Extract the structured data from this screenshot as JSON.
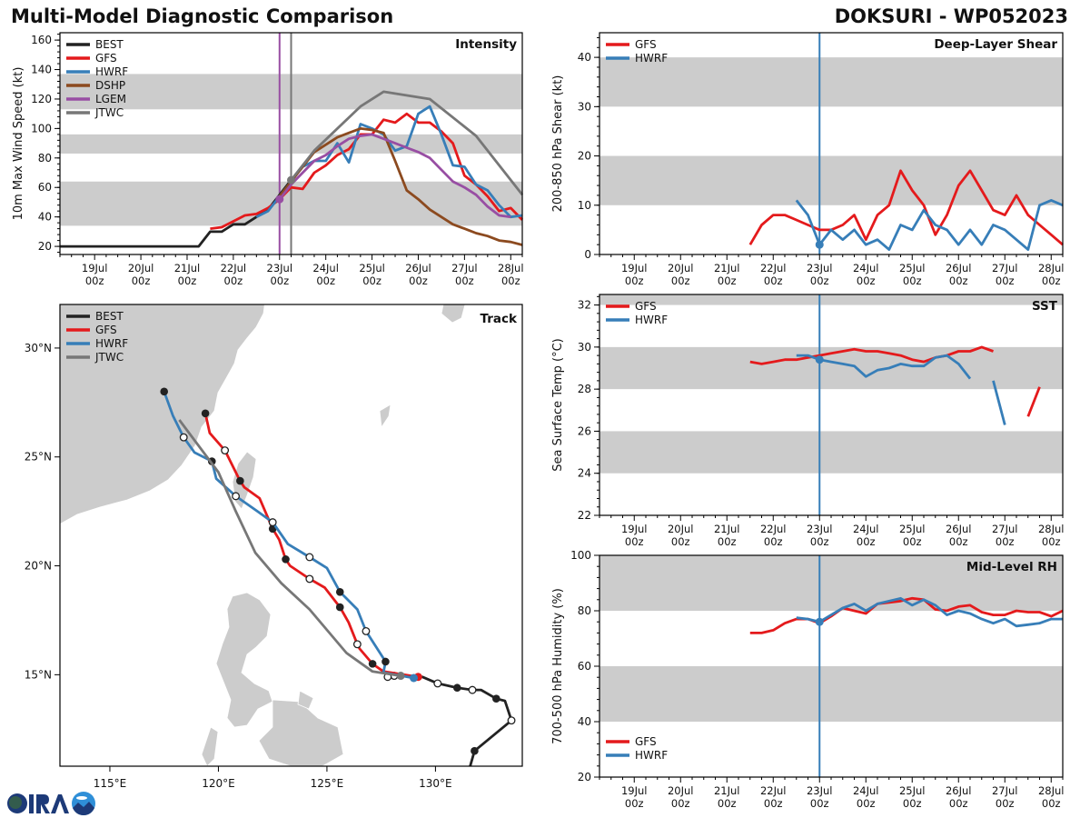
{
  "header": {
    "title": "Multi-Model Diagnostic Comparison",
    "storm": "DOKSURI - WP052023"
  },
  "logo": {
    "text": "CIRA",
    "colors": {
      "navy": "#1d3a78",
      "sky": "#2f8fd8"
    }
  },
  "colors": {
    "BEST": "#222222",
    "GFS": "#e41a1c",
    "HWRF": "#377eb8",
    "DSHP": "#8c4a1f",
    "LGEM": "#984ea3",
    "JTWC": "#777777",
    "band": "#cccccc"
  },
  "time_axis": {
    "xlim": [
      "18Jul 06z",
      "28Jul 06z"
    ],
    "ticks": [
      {
        "t": "19Jul 00z",
        "l1": "19Jul",
        "l2": "00z"
      },
      {
        "t": "20Jul 00z",
        "l1": "20Jul",
        "l2": "00z"
      },
      {
        "t": "21Jul 00z",
        "l1": "21Jul",
        "l2": "00z"
      },
      {
        "t": "22Jul 00z",
        "l1": "22Jul",
        "l2": "00z"
      },
      {
        "t": "23Jul 00z",
        "l1": "23Jul",
        "l2": "00z"
      },
      {
        "t": "24Jul 00z",
        "l1": "24Jul",
        "l2": "00z"
      },
      {
        "t": "25Jul 00z",
        "l1": "25Jul",
        "l2": "00z"
      },
      {
        "t": "26Jul 00z",
        "l1": "26Jul",
        "l2": "00z"
      },
      {
        "t": "27Jul 00z",
        "l1": "27Jul",
        "l2": "00z"
      },
      {
        "t": "28Jul 00z",
        "l1": "28Jul",
        "l2": "00z"
      }
    ]
  },
  "chart_data": [
    {
      "id": "intensity",
      "type": "line",
      "title": "Intensity",
      "ylabel": "10m Max Wind Speed (kt)",
      "ylim": [
        14.5,
        165
      ],
      "yticks": [
        20,
        40,
        60,
        80,
        100,
        120,
        140,
        160
      ],
      "show_xlabels": true,
      "bands": [
        [
          34,
          64
        ],
        [
          83,
          96
        ],
        [
          113,
          137
        ]
      ],
      "legend": "top-left",
      "grid": false,
      "vlines": [
        {
          "t": "23Jul 00z",
          "color": "#984ea3"
        },
        {
          "t": "23Jul 06z",
          "color": "#777777"
        }
      ],
      "series": [
        {
          "name": "BEST",
          "start": "18Jul 06z",
          "step_h": 6,
          "values": [
            20,
            20,
            20,
            20,
            20,
            20,
            20,
            20,
            20,
            20,
            20,
            20,
            20,
            30,
            30,
            35,
            35,
            40,
            45,
            55,
            65
          ]
        },
        {
          "name": "GFS",
          "start": "21Jul 12z",
          "step_h": 6,
          "values": [
            32,
            33,
            37,
            41,
            42,
            46,
            52,
            60,
            59,
            70,
            75,
            82,
            86,
            96,
            96,
            106,
            104,
            110,
            104,
            104,
            98,
            90,
            68,
            62,
            54,
            44,
            46,
            38
          ]
        },
        {
          "name": "HWRF",
          "start": "22Jul 12z",
          "step_h": 6,
          "values": [
            40,
            44,
            54,
            64,
            74,
            78,
            78,
            90,
            77,
            103,
            100,
            96,
            85,
            88,
            110,
            115,
            96,
            75,
            74,
            62,
            58,
            48,
            40,
            41
          ]
        },
        {
          "name": "DSHP",
          "start": "23Jul 00z",
          "step_h": 6,
          "values": [
            54,
            64,
            74,
            84,
            89,
            94,
            97,
            100,
            99,
            97,
            78,
            58,
            52,
            45,
            40,
            35,
            32,
            29,
            27,
            24,
            23,
            21
          ]
        },
        {
          "name": "LGEM",
          "start": "23Jul 00z",
          "step_h": 6,
          "values": [
            52,
            62,
            70,
            78,
            82,
            88,
            93,
            95,
            96,
            93,
            90,
            87,
            84,
            80,
            72,
            64,
            60,
            55,
            47,
            41,
            40
          ]
        },
        {
          "name": "JTWC",
          "times": [
            "23Jul 06z",
            "23Jul 18z",
            "24Jul 18z",
            "25Jul 06z",
            "26Jul 06z",
            "27Jul 06z",
            "28Jul 06z"
          ],
          "values": [
            65,
            85,
            115,
            125,
            120,
            95,
            55
          ]
        }
      ]
    },
    {
      "id": "shear",
      "type": "line",
      "title": "Deep-Layer Shear",
      "ylabel": "200-850 hPa Shear (kt)",
      "ylim": [
        0,
        45
      ],
      "yticks": [
        0,
        10,
        20,
        30,
        40
      ],
      "show_xlabels": true,
      "bands": [
        [
          10,
          20
        ],
        [
          30,
          40
        ]
      ],
      "legend": "top-left",
      "grid": false,
      "vlines": [
        {
          "t": "23Jul 00z",
          "color": "#377eb8"
        }
      ],
      "series": [
        {
          "name": "GFS",
          "start": "21Jul 12z",
          "step_h": 6,
          "values": [
            2,
            6,
            8,
            8,
            7,
            6,
            5,
            5,
            6,
            8,
            3,
            8,
            10,
            17,
            13,
            10,
            4,
            8,
            14,
            17,
            13,
            9,
            8,
            12,
            8,
            6,
            4,
            2
          ]
        },
        {
          "name": "HWRF",
          "start": "22Jul 12z",
          "step_h": 6,
          "values": [
            11,
            8,
            2,
            5,
            3,
            5,
            2,
            3,
            1,
            6,
            5,
            9,
            6,
            5,
            2,
            5,
            2,
            6,
            5,
            3,
            1,
            10,
            11,
            10
          ]
        }
      ]
    },
    {
      "id": "sst",
      "type": "line",
      "title": "SST",
      "ylabel": "Sea Surface Temp (°C)",
      "ylim": [
        22,
        32.5
      ],
      "yticks": [
        22,
        24,
        26,
        28,
        30,
        32
      ],
      "show_xlabels": true,
      "bands": [
        [
          24,
          26
        ],
        [
          28,
          30
        ],
        [
          32,
          32.5
        ]
      ],
      "legend": "top-left",
      "grid": false,
      "vlines": [
        {
          "t": "23Jul 00z",
          "color": "#377eb8"
        }
      ],
      "series": [
        {
          "name": "GFS",
          "start": "21Jul 12z",
          "step_h": 6,
          "values": [
            29.3,
            29.2,
            29.3,
            29.4,
            29.4,
            29.5,
            29.6,
            29.7,
            29.8,
            29.9,
            29.8,
            29.8,
            29.7,
            29.6,
            29.4,
            29.3,
            29.5,
            29.6,
            29.8,
            29.8,
            30.0,
            29.8,
            null,
            null,
            26.7,
            28.1
          ]
        },
        {
          "name": "HWRF",
          "start": "22Jul 12z",
          "step_h": 6,
          "values": [
            29.6,
            29.6,
            29.4,
            29.3,
            29.2,
            29.1,
            28.6,
            28.9,
            29.0,
            29.2,
            29.1,
            29.1,
            29.5,
            29.6,
            29.2,
            28.5,
            null,
            28.4,
            26.3
          ]
        }
      ]
    },
    {
      "id": "rh",
      "type": "line",
      "title": "Mid-Level RH",
      "ylabel": "700-500 hPa Humidity (%)",
      "ylim": [
        20,
        100
      ],
      "yticks": [
        20,
        40,
        60,
        80,
        100
      ],
      "show_xlabels": true,
      "bands": [
        [
          40,
          60
        ],
        [
          80,
          100
        ]
      ],
      "legend": "bottom-left",
      "grid": false,
      "vlines": [
        {
          "t": "23Jul 00z",
          "color": "#377eb8"
        }
      ],
      "series": [
        {
          "name": "GFS",
          "start": "21Jul 12z",
          "step_h": 6,
          "values": [
            72,
            72,
            73,
            75.5,
            77,
            77,
            75.5,
            78,
            81,
            80,
            79,
            82.5,
            83,
            83.5,
            84.5,
            84,
            80.5,
            80,
            81.5,
            82,
            79.5,
            78.5,
            78.5,
            80,
            79.5,
            79.5,
            78,
            80
          ]
        },
        {
          "name": "HWRF",
          "start": "22Jul 12z",
          "step_h": 6,
          "values": [
            77.5,
            77,
            76,
            78.5,
            81,
            82.5,
            80,
            82.5,
            83.5,
            84.5,
            82,
            84,
            82,
            78.5,
            80,
            79,
            77,
            75.5,
            77,
            74.5,
            75,
            75.5,
            77,
            77
          ]
        }
      ]
    },
    {
      "id": "track",
      "type": "map",
      "title": "Track",
      "legend": "top-left",
      "xlim": [
        112.7,
        134.0
      ],
      "ylim": [
        10.8,
        32.0
      ],
      "xticks": [
        {
          "v": 115,
          "label": "115°E"
        },
        {
          "v": 120,
          "label": "120°E"
        },
        {
          "v": 125,
          "label": "125°E"
        },
        {
          "v": 130,
          "label": "130°E"
        }
      ],
      "yticks": [
        {
          "v": 15,
          "label": "15°N"
        },
        {
          "v": 20,
          "label": "20°N"
        },
        {
          "v": 25,
          "label": "25°N"
        },
        {
          "v": 30,
          "label": "30°N"
        }
      ],
      "series": [
        {
          "name": "BEST",
          "points": [
            [
              131.6,
              10.8,
              null
            ],
            [
              131.8,
              11.5,
              "filled"
            ],
            [
              133.5,
              12.9,
              "open"
            ],
            [
              133.2,
              13.8,
              null
            ],
            [
              132.8,
              13.9,
              "filled"
            ],
            [
              132.1,
              14.3,
              null
            ],
            [
              131.7,
              14.3,
              "open"
            ],
            [
              131.0,
              14.4,
              "filled"
            ],
            [
              130.1,
              14.6,
              "open"
            ],
            [
              129.4,
              14.9,
              null
            ],
            [
              128.1,
              14.95,
              "open"
            ],
            [
              127.8,
              14.9,
              "open"
            ]
          ]
        },
        {
          "name": "GFS",
          "points": [
            [
              129.2,
              14.9,
              "start"
            ],
            [
              127.6,
              15.15,
              null
            ],
            [
              127.1,
              15.5,
              "filled"
            ],
            [
              126.5,
              16.2,
              null
            ],
            [
              126.4,
              16.4,
              "open"
            ],
            [
              126.0,
              17.4,
              null
            ],
            [
              125.6,
              18.1,
              "filled"
            ],
            [
              124.9,
              19.0,
              null
            ],
            [
              124.2,
              19.4,
              "open"
            ],
            [
              123.3,
              20.0,
              null
            ],
            [
              123.1,
              20.3,
              "filled"
            ],
            [
              122.8,
              21.2,
              null
            ],
            [
              122.5,
              21.7,
              "filled"
            ],
            [
              121.9,
              23.1,
              null
            ],
            [
              121.2,
              23.6,
              null
            ],
            [
              121.0,
              23.9,
              "filled"
            ],
            [
              120.3,
              25.3,
              "open"
            ],
            [
              119.6,
              26.1,
              null
            ],
            [
              119.4,
              27.0,
              "filled"
            ]
          ]
        },
        {
          "name": "HWRF",
          "points": [
            [
              129.0,
              14.85,
              "start"
            ],
            [
              127.6,
              15.1,
              null
            ],
            [
              127.7,
              15.6,
              "filled"
            ],
            [
              126.8,
              17.0,
              "open"
            ],
            [
              126.4,
              18.0,
              null
            ],
            [
              125.6,
              18.8,
              "filled"
            ],
            [
              125.0,
              19.9,
              null
            ],
            [
              124.2,
              20.4,
              "open"
            ],
            [
              123.2,
              21.0,
              null
            ],
            [
              122.5,
              22.0,
              "open"
            ],
            [
              121.8,
              22.5,
              null
            ],
            [
              120.8,
              23.2,
              "open"
            ],
            [
              119.9,
              24.0,
              null
            ],
            [
              119.7,
              24.8,
              "filled"
            ],
            [
              118.9,
              25.2,
              null
            ],
            [
              118.4,
              25.9,
              "open"
            ],
            [
              117.9,
              26.9,
              null
            ],
            [
              117.5,
              28.0,
              "filled"
            ]
          ]
        },
        {
          "name": "JTWC",
          "points": [
            [
              128.4,
              14.95,
              "start"
            ],
            [
              127.1,
              15.15,
              null
            ],
            [
              125.9,
              16.0,
              null
            ],
            [
              124.2,
              18.0,
              null
            ],
            [
              122.9,
              19.2,
              null
            ],
            [
              121.7,
              20.6,
              null
            ],
            [
              120.8,
              22.5,
              null
            ],
            [
              120.0,
              24.3,
              null
            ],
            [
              118.2,
              26.7,
              null
            ]
          ]
        }
      ]
    }
  ]
}
